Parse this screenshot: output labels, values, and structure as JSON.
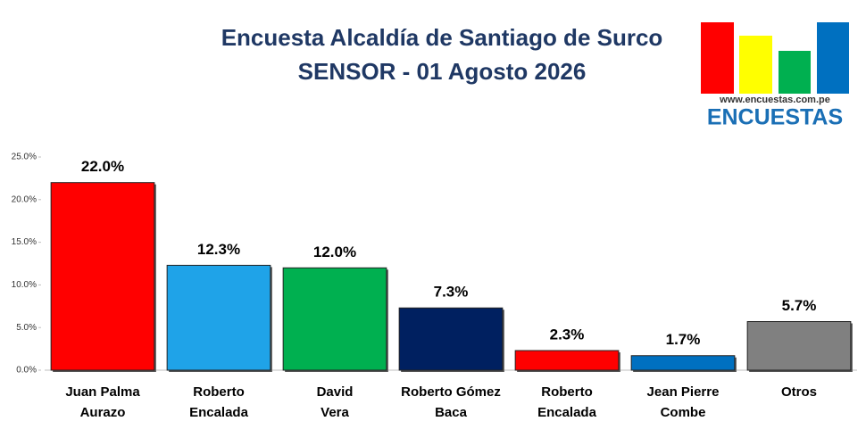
{
  "chart_data": {
    "type": "bar",
    "title": "Encuesta Alcaldía de Santiago de Surco",
    "subtitle": "SENSOR - 01 Agosto 2026",
    "categories": [
      [
        "Juan Palma",
        "Aurazo"
      ],
      [
        "Roberto",
        "Encalada"
      ],
      [
        "David",
        "Vera"
      ],
      [
        "Roberto Gómez",
        "Baca"
      ],
      [
        "Roberto",
        "Encalada"
      ],
      [
        "Jean Pierre",
        "Combe"
      ],
      [
        "Otros"
      ]
    ],
    "values": [
      22.0,
      12.3,
      12.0,
      7.3,
      2.3,
      1.7,
      5.7
    ],
    "value_labels": [
      "22.0%",
      "12.3%",
      "12.0%",
      "7.3%",
      "2.3%",
      "1.7%",
      "5.7%"
    ],
    "colors": [
      "#ff0000",
      "#1fa3e8",
      "#00b050",
      "#002060",
      "#ff0000",
      "#0070c0",
      "#808080"
    ],
    "ylim": [
      0,
      25
    ],
    "yticks": [
      {
        "value": 0,
        "label": "0.0%"
      },
      {
        "value": 5,
        "label": "5.0%"
      },
      {
        "value": 10,
        "label": "10.0%"
      },
      {
        "value": 15,
        "label": "15.0%"
      },
      {
        "value": 20,
        "label": "20.0%"
      },
      {
        "value": 25,
        "label": "25.0%"
      }
    ],
    "grid": false
  },
  "logo": {
    "url": "www.encuestas.com.pe",
    "name": "ENCUESTAS"
  }
}
